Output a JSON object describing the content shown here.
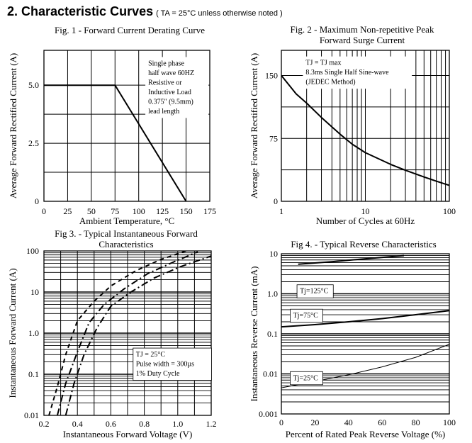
{
  "header": {
    "title": "2. Characteristic Curves",
    "note": "( TA = 25°C unless otherwise noted )"
  },
  "chart_data": [
    {
      "id": "fig1",
      "type": "line",
      "title": "Fig. 1 - Forward Current Derating Curve",
      "title_lines": [
        "Fig. 1  -  Forward Current Derating Curve"
      ],
      "xlabel": "Ambient Temperature, °C",
      "ylabel": "Average Forward Rectified Current (A)",
      "xlim": [
        0,
        175
      ],
      "ylim": [
        0,
        6.5
      ],
      "xscale": "linear",
      "yscale": "linear",
      "xticks": [
        0,
        25,
        50,
        75,
        100,
        125,
        150,
        175
      ],
      "xtick_labels": [
        "0",
        "25",
        "50",
        "75",
        "100",
        "125",
        "150",
        "175"
      ],
      "yticks": [
        0,
        2.5,
        5.0
      ],
      "ytick_labels": [
        "0",
        "2.5",
        "5.0"
      ],
      "xgrid": [
        25,
        50,
        75,
        100,
        125,
        150
      ],
      "ygrid": [
        1.25,
        2.5,
        3.75,
        5.0
      ],
      "grid": true,
      "series": [
        {
          "x": [
            0,
            75,
            150
          ],
          "y": [
            5.0,
            5.0,
            0
          ],
          "width": 2,
          "dash": ""
        }
      ],
      "annotations": [
        {
          "lines": [
            "Single phase",
            "half  wave 60HZ",
            "Resistive or",
            "Inductive Load",
            "0.375\" (9.5mm)",
            "lead length"
          ],
          "x": 110,
          "y": 6.15
        }
      ]
    },
    {
      "id": "fig2",
      "type": "line",
      "title": "Fig. 2 - Maximum Non-repetitive Peak Forward Surge Current",
      "title_lines": [
        "Fig. 2  -  Maximum Non-repetitive Peak",
        "Forward Surge Current"
      ],
      "xlabel": "Number of Cycles at 60Hz",
      "ylabel": "Average Forward Rectified Current (A)",
      "xlim": [
        1,
        100
      ],
      "ylim": [
        0,
        180
      ],
      "xscale": "log",
      "yscale": "linear",
      "xticks": [
        1,
        10,
        100
      ],
      "xtick_labels": [
        "1",
        "10",
        "100"
      ],
      "yticks": [
        0,
        75,
        150
      ],
      "ytick_labels": [
        "0",
        "75",
        "150"
      ],
      "ygrid": [
        37.5,
        75,
        112.5,
        150
      ],
      "grid": true,
      "series": [
        {
          "x": [
            1,
            1.5,
            2,
            3,
            5,
            7,
            10,
            20,
            30,
            50,
            70,
            100
          ],
          "y": [
            150,
            128,
            117,
            100,
            80,
            68,
            58,
            44,
            37,
            29,
            24,
            19
          ],
          "width": 2,
          "dash": ""
        }
      ],
      "annotations": [
        {
          "lines": [
            "TJ = TJ max",
            "8.3ms Single Half Sine-wave",
            "(JEDEC Method)"
          ],
          "x": 1.95,
          "y": 171
        }
      ]
    },
    {
      "id": "fig3",
      "type": "line",
      "title": "Fig 3. - Typical Instantaneous Forward Characteristics",
      "title_lines": [
        "Fig 3.  -  Typical Instantaneous Forward",
        "Characteristics"
      ],
      "xlabel": "Instantaneous Forward Voltage (V)",
      "ylabel": "Instantaneous Forward Current (A)",
      "xlim": [
        0.2,
        1.2
      ],
      "ylim": [
        0.01,
        100
      ],
      "xscale": "linear",
      "yscale": "log",
      "xticks": [
        0.2,
        0.4,
        0.6,
        0.8,
        1.0,
        1.2
      ],
      "xtick_labels": [
        "0.2",
        "0.4",
        "0.6",
        "0.8",
        "1.0",
        "1.2"
      ],
      "yticks": [
        0.01,
        0.1,
        1.0,
        10,
        100
      ],
      "ytick_labels": [
        "0.01",
        "0.1",
        "1.0",
        "10",
        "100"
      ],
      "xgrid": [
        0.3,
        0.4,
        0.5,
        0.6,
        0.7,
        0.8,
        0.9,
        1.0,
        1.1
      ],
      "ygrid_minor": true,
      "grid": true,
      "series": [
        {
          "x": [
            0.23,
            0.28,
            0.33,
            0.4,
            0.5,
            0.6,
            0.75,
            0.9,
            1.05
          ],
          "y": [
            0.01,
            0.05,
            0.3,
            2,
            6,
            14,
            33,
            62,
            100
          ],
          "width": 2,
          "dash": "6,5"
        },
        {
          "x": [
            0.28,
            0.33,
            0.4,
            0.47,
            0.56,
            0.68,
            0.82,
            0.98,
            1.12
          ],
          "y": [
            0.01,
            0.06,
            0.35,
            1.8,
            5,
            12,
            28,
            55,
            95
          ],
          "width": 2,
          "dash": "10,4,2,4"
        },
        {
          "x": [
            0.33,
            0.38,
            0.44,
            0.52,
            0.6,
            0.72,
            0.86,
            1.02,
            1.2
          ],
          "y": [
            0.01,
            0.06,
            0.3,
            1.4,
            4.5,
            10,
            22,
            42,
            75
          ],
          "width": 2,
          "dash": "10,4,2,4"
        }
      ],
      "annotations": [
        {
          "lines": [
            "TJ = 25°C",
            "Pulse width = 300µs",
            "1% Duty Cycle"
          ],
          "x": 0.75,
          "y": 0.4,
          "boxed": true
        }
      ]
    },
    {
      "id": "fig4",
      "type": "line",
      "title": "Fig 4. - Typical Reverse Characteristics",
      "title_lines": [
        "Fig 4.  -  Typical Reverse Characteristics"
      ],
      "xlabel": "Percent of Rated Peak Reverse Voltage (%)",
      "ylabel": "Instantaneous Reverse Current (mA)",
      "xlim": [
        0,
        100
      ],
      "ylim": [
        0.001,
        10
      ],
      "xscale": "linear",
      "yscale": "log",
      "xticks": [
        0,
        20,
        40,
        60,
        80,
        100
      ],
      "xtick_labels": [
        "0",
        "20",
        "40",
        "60",
        "80",
        "100"
      ],
      "yticks": [
        0.001,
        0.01,
        0.1,
        1.0,
        10
      ],
      "ytick_labels": [
        "0.001",
        "0.01",
        "0.1",
        "1.0",
        "10"
      ],
      "ygrid_minor": true,
      "grid": true,
      "series": [
        {
          "name": "Tj=125°C",
          "x": [
            10,
            30,
            50,
            73
          ],
          "y": [
            5.5,
            6.3,
            7.5,
            9.0
          ],
          "width": 2,
          "dash": ""
        },
        {
          "name": "Tj=75°C",
          "x": [
            0,
            20,
            40,
            60,
            80,
            100
          ],
          "y": [
            0.15,
            0.17,
            0.2,
            0.24,
            0.3,
            0.38
          ],
          "width": 2,
          "dash": ""
        },
        {
          "name": "Tj=25°C",
          "x": [
            0,
            20,
            40,
            60,
            80,
            100
          ],
          "y": [
            0.0045,
            0.0065,
            0.0095,
            0.015,
            0.026,
            0.055
          ],
          "width": 1,
          "dash": ""
        }
      ],
      "annotations": [
        {
          "lines": [
            "Tj=125°C"
          ],
          "x": 11,
          "y": 1.55,
          "boxed": true
        },
        {
          "lines": [
            "Tj=75°C"
          ],
          "x": 7,
          "y": 0.38,
          "boxed": true
        },
        {
          "lines": [
            "Tj=25°C"
          ],
          "x": 7,
          "y": 0.0105,
          "boxed": true
        }
      ]
    }
  ]
}
